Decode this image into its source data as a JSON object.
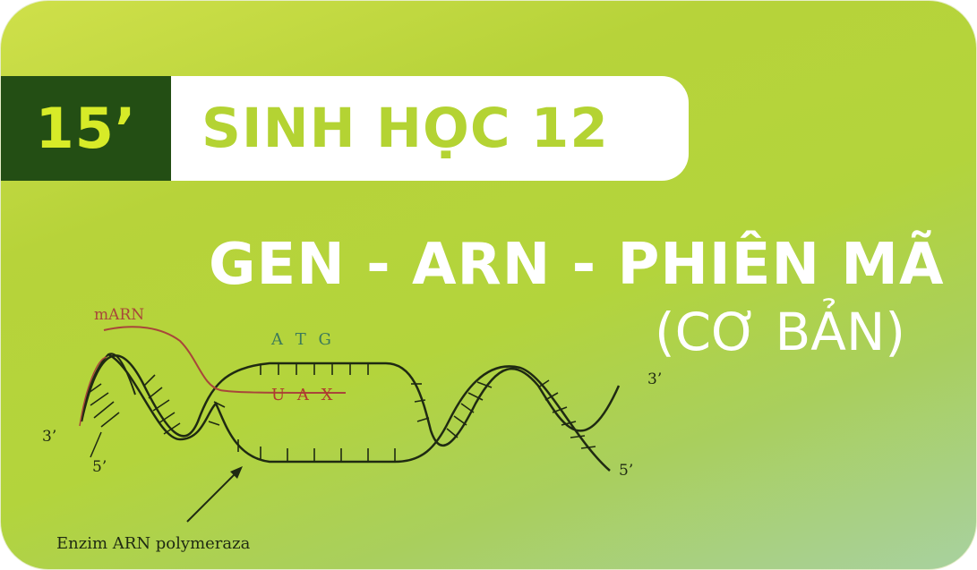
{
  "badge": {
    "number": "15’"
  },
  "header": {
    "subject": "SINH HỌC 12"
  },
  "main": {
    "title": "GEN - ARN - PHIÊN MÃ",
    "subtitle": "(CƠ BẢN)"
  },
  "diagram": {
    "mrna_label": "mARN",
    "top_bases": "A T G",
    "bottom_bases": "U A X",
    "end_3_left": "3’",
    "end_5_left": "5’",
    "end_3_right": "3’",
    "end_5_right": "5’",
    "enzyme_label": "Enzim ARN polymeraza"
  },
  "colors": {
    "dark_green": "#234e14",
    "lime": "#b4d333",
    "mrna": "#b03a2e",
    "bases_top": "#3c7a5a"
  }
}
